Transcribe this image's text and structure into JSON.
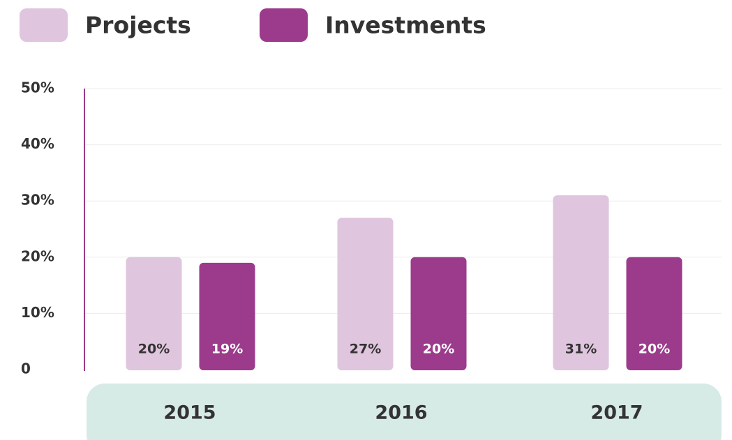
{
  "chart_data": {
    "type": "bar",
    "categories": [
      "2015",
      "2016",
      "2017"
    ],
    "series": [
      {
        "name": "Projects",
        "color": "#dfc5dd",
        "values": [
          20,
          27,
          31
        ],
        "value_labels": [
          "20%",
          "27%",
          "31%"
        ]
      },
      {
        "name": "Investments",
        "color": "#9c3a8c",
        "values": [
          19,
          20,
          20
        ],
        "value_labels": [
          "19%",
          "20%",
          "20%"
        ]
      }
    ],
    "ylim": [
      0,
      50
    ],
    "yticks": [
      0,
      {
        "value": 10,
        "label": "10%"
      },
      {
        "value": 20,
        "label": "20%"
      },
      {
        "value": 30,
        "label": "30%"
      },
      {
        "value": 40,
        "label": "40%"
      },
      {
        "value": 50,
        "label": "50%"
      }
    ],
    "grid": true
  }
}
